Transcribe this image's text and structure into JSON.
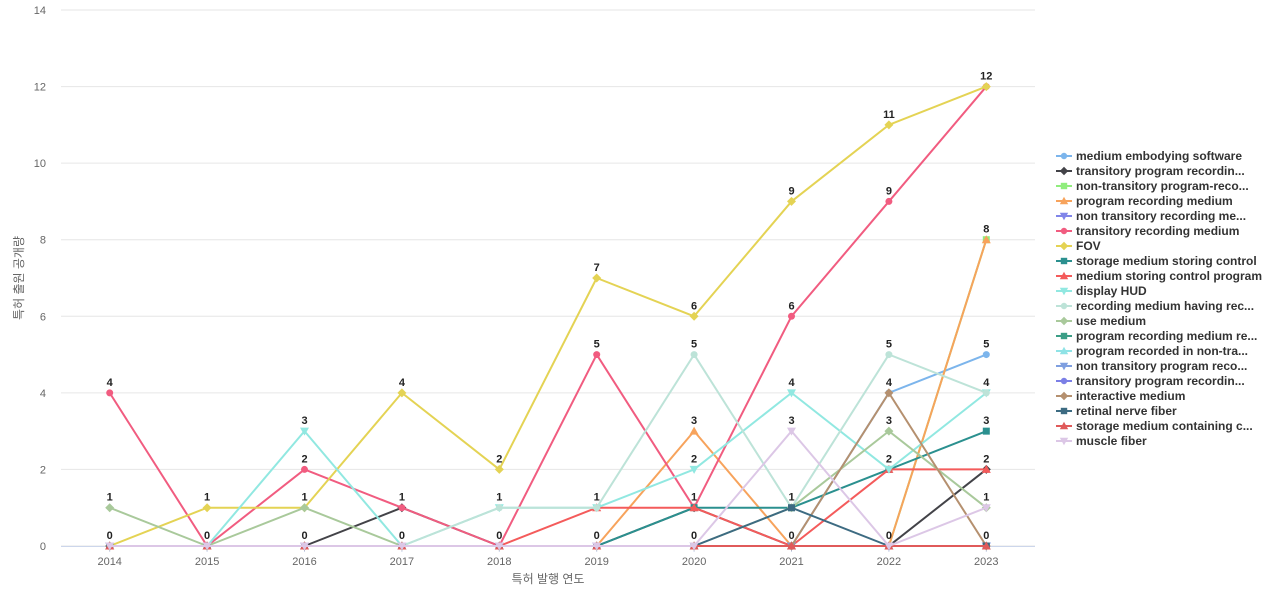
{
  "chart_data": {
    "type": "line",
    "title": "",
    "xlabel": "특허 발행 연도",
    "ylabel": "특허 출원 공개량",
    "ylim": [
      0,
      14
    ],
    "yticks": [
      0,
      2,
      4,
      6,
      8,
      10,
      12,
      14
    ],
    "grid": true,
    "legend": "right",
    "categories": [
      "2014",
      "2015",
      "2016",
      "2017",
      "2018",
      "2019",
      "2020",
      "2021",
      "2022",
      "2023"
    ],
    "series": [
      {
        "name": "medium embodying software",
        "color": "#7cb5ec",
        "marker": "circle",
        "values": [
          0,
          0,
          0,
          0,
          0,
          0,
          0,
          0,
          4,
          5
        ]
      },
      {
        "name": "transitory program recordin...",
        "color": "#434348",
        "marker": "diamond",
        "values": [
          0,
          0,
          0,
          1,
          0,
          0,
          1,
          0,
          0,
          2
        ]
      },
      {
        "name": "non-transitory program-reco...",
        "color": "#90ed7d",
        "marker": "square",
        "values": [
          0,
          0,
          0,
          0,
          0,
          0,
          0,
          0,
          0,
          8
        ]
      },
      {
        "name": "program recording medium",
        "color": "#f7a35c",
        "marker": "triangle",
        "values": [
          0,
          0,
          0,
          0,
          0,
          0,
          3,
          0,
          0,
          8
        ]
      },
      {
        "name": "non transitory recording me...",
        "color": "#8085e9",
        "marker": "triangle-down",
        "values": [
          0,
          0,
          0,
          0,
          0,
          0,
          0,
          0,
          0,
          0
        ]
      },
      {
        "name": "transitory recording medium",
        "color": "#f15c80",
        "marker": "circle",
        "values": [
          4,
          0,
          2,
          1,
          0,
          5,
          1,
          6,
          9,
          12
        ]
      },
      {
        "name": "FOV",
        "color": "#e4d354",
        "marker": "diamond",
        "values": [
          0,
          1,
          1,
          4,
          2,
          7,
          6,
          9,
          11,
          12
        ]
      },
      {
        "name": "storage medium storing control",
        "color": "#2b908f",
        "marker": "square",
        "values": [
          0,
          0,
          0,
          0,
          0,
          0,
          1,
          1,
          2,
          3
        ]
      },
      {
        "name": "medium storing control program",
        "color": "#f45b5b",
        "marker": "triangle",
        "values": [
          0,
          0,
          0,
          0,
          0,
          1,
          1,
          0,
          2,
          2
        ]
      },
      {
        "name": "display HUD",
        "color": "#91e8e1",
        "marker": "triangle-down",
        "values": [
          0,
          0,
          3,
          0,
          1,
          1,
          2,
          4,
          2,
          4
        ]
      },
      {
        "name": "recording medium having rec...",
        "color": "#bde3d8",
        "marker": "circle",
        "values": [
          0,
          0,
          0,
          0,
          1,
          1,
          5,
          1,
          5,
          4
        ]
      },
      {
        "name": "use medium",
        "color": "#a9c99b",
        "marker": "diamond",
        "values": [
          1,
          0,
          1,
          0,
          0,
          0,
          0,
          1,
          3,
          1
        ]
      },
      {
        "name": "program recording medium re...",
        "color": "#3b9e86",
        "marker": "square",
        "values": [
          0,
          0,
          0,
          0,
          0,
          0,
          0,
          0,
          0,
          0
        ]
      },
      {
        "name": "program recorded in non-tra...",
        "color": "#8fe3e6",
        "marker": "triangle",
        "values": [
          0,
          0,
          0,
          0,
          0,
          0,
          0,
          0,
          0,
          0
        ]
      },
      {
        "name": "non transitory program reco...",
        "color": "#7f9fe0",
        "marker": "triangle-down",
        "values": [
          0,
          0,
          0,
          0,
          0,
          0,
          0,
          0,
          0,
          0
        ]
      },
      {
        "name": "transitory program recordin...",
        "color": "#7b7fe6",
        "marker": "circle",
        "values": [
          0,
          0,
          0,
          0,
          0,
          0,
          0,
          0,
          0,
          0
        ]
      },
      {
        "name": "interactive medium",
        "color": "#b5906f",
        "marker": "diamond",
        "values": [
          0,
          0,
          0,
          0,
          0,
          0,
          0,
          0,
          4,
          0
        ]
      },
      {
        "name": "retinal nerve fiber",
        "color": "#3d6b82",
        "marker": "square",
        "values": [
          0,
          0,
          0,
          0,
          0,
          0,
          0,
          1,
          0,
          0
        ]
      },
      {
        "name": "storage medium containing c...",
        "color": "#e05a5a",
        "marker": "triangle",
        "values": [
          0,
          0,
          0,
          0,
          0,
          0,
          0,
          0,
          0,
          0
        ]
      },
      {
        "name": "muscle fiber",
        "color": "#dcc7e6",
        "marker": "triangle-down",
        "values": [
          0,
          0,
          0,
          0,
          0,
          0,
          0,
          3,
          0,
          1
        ]
      }
    ],
    "data_labels": {
      "2014": [
        "0",
        "1",
        "4"
      ],
      "2015": [
        "0",
        "1"
      ],
      "2016": [
        "0",
        "1",
        "2",
        "3"
      ],
      "2017": [
        "0",
        "1",
        "4"
      ],
      "2018": [
        "0",
        "1",
        "2"
      ],
      "2019": [
        "0",
        "1",
        "5",
        "7"
      ],
      "2020": [
        "0",
        "1",
        "2",
        "3",
        "5",
        "6"
      ],
      "2021": [
        "0",
        "1",
        "3",
        "4",
        "6",
        "9"
      ],
      "2022": [
        "0",
        "2",
        "3",
        "4",
        "5",
        "9",
        "11"
      ],
      "2023": [
        "0",
        "1",
        "2",
        "3",
        "4",
        "5",
        "8",
        "12"
      ]
    }
  }
}
